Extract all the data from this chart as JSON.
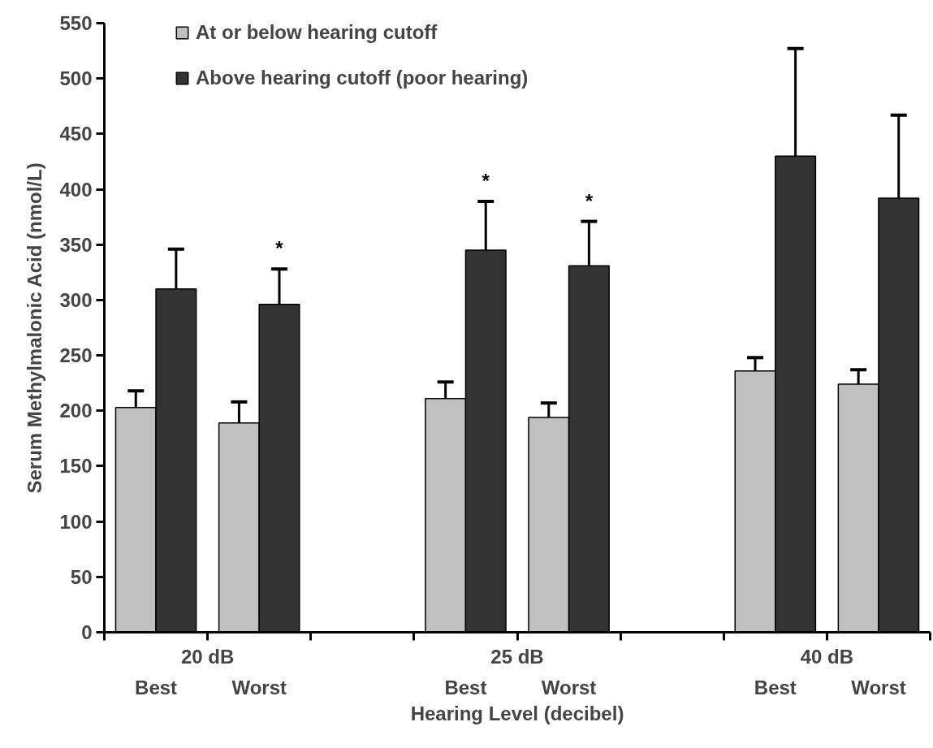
{
  "chart_data": {
    "type": "bar",
    "categories": [
      "Best",
      "Worst",
      null,
      "Best",
      "Worst",
      null,
      "Best",
      "Worst"
    ],
    "series": [
      {
        "name": "At or below hearing cutoff",
        "color": "#c0c0c0",
        "values": [
          203,
          189,
          null,
          211,
          194,
          null,
          236,
          224
        ],
        "errors": [
          [
            203,
            218
          ],
          [
            189,
            208
          ],
          null,
          [
            211,
            226
          ],
          [
            194,
            207
          ],
          null,
          [
            236,
            248
          ],
          [
            224,
            237
          ]
        ]
      },
      {
        "name": "Above hearing cutoff (poor hearing)",
        "color": "#333333",
        "values": [
          310,
          296,
          null,
          345,
          331,
          null,
          430,
          392
        ],
        "errors": [
          [
            310,
            346
          ],
          [
            296,
            328
          ],
          null,
          [
            345,
            389
          ],
          [
            331,
            371
          ],
          null,
          [
            430,
            527
          ],
          [
            392,
            467
          ]
        ]
      }
    ],
    "ylabel": "Serum Methylmalonic Acid (nmol/L)",
    "xlabel": "Hearing Level (decibel)",
    "annotations": [
      "20 dB",
      "25 dB",
      "40 dB",
      "*",
      "*",
      "*"
    ],
    "ylim": [
      0,
      550
    ],
    "yticks": [
      0,
      50,
      100,
      150,
      200,
      250,
      300,
      350,
      400,
      450,
      500,
      550
    ],
    "grid": false,
    "legend": "top left"
  }
}
